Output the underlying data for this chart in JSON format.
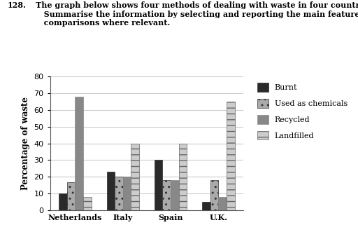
{
  "header_number": "128.",
  "header_text": "The graph below shows four methods of dealing with waste in four countries.\n   Summarise the information by selecting and reporting the main features and make\n   comparisons where relevant.",
  "ylabel": "Percentage of waste",
  "countries": [
    "Netherlands",
    "Italy",
    "Spain",
    "U.K."
  ],
  "categories": [
    "Burnt",
    "Used as chemicals",
    "Recycled",
    "Landfilled"
  ],
  "values": {
    "Netherlands": [
      10,
      17,
      68,
      8
    ],
    "Italy": [
      23,
      20,
      20,
      40
    ],
    "Spain": [
      30,
      18,
      18,
      40
    ],
    "U.K.": [
      5,
      18,
      8,
      65
    ]
  },
  "bar_colors": [
    "#2a2a2a",
    "#aaaaaa",
    "#888888",
    "#cccccc"
  ],
  "bar_hatches": [
    null,
    "..",
    null,
    "--"
  ],
  "bar_edgecolors": [
    "#2a2a2a",
    "#333333",
    "#888888",
    "#666666"
  ],
  "ylim": [
    0,
    80
  ],
  "yticks": [
    0,
    10,
    20,
    30,
    40,
    50,
    60,
    70,
    80
  ],
  "bar_width": 0.17,
  "background_color": "#ffffff",
  "grid_color": "#cccccc"
}
